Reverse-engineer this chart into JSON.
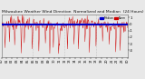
{
  "title": "Milwaukee Weather Wind Direction  Normalized and Median  (24 Hours) (New)",
  "background_color": "#e8e8e8",
  "plot_bg_color": "#e8e8e8",
  "grid_color": "#aaaaaa",
  "line_color": "#cc0000",
  "median_color": "#0000cc",
  "mean_color": "#cc0000",
  "median_value": -0.1,
  "mean_value": 0.08,
  "ylim": [
    -5.0,
    1.5
  ],
  "n_points": 288,
  "legend_label_median": "Median",
  "legend_label_norm": "Norm",
  "title_fontsize": 3.2,
  "tick_fontsize": 2.8,
  "yticks": [
    -4,
    -3,
    -2,
    -1,
    0,
    1
  ],
  "n_grid_lines": 3
}
